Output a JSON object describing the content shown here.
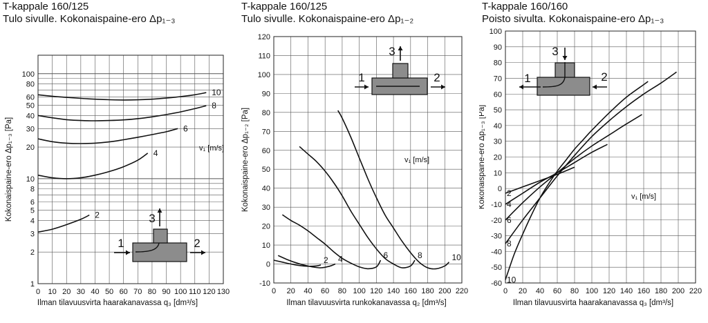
{
  "chart_data": [
    {
      "type": "line",
      "title": "T-kappale 160/125",
      "subtitle": "Tulo sivulle. Kokonaispaine-ero Δp₁₋₃",
      "xlabel": "Ilman tilavuusvirta haarakanavassa q₃ [dm³/s]",
      "ylabel": "Kokonaispaine-ero Δp₁₋₃ [Pa]",
      "yscale": "log",
      "xlim": [
        0,
        130
      ],
      "ylim": [
        1,
        150
      ],
      "xticks": [
        0,
        10,
        20,
        30,
        40,
        50,
        60,
        70,
        80,
        90,
        100,
        110,
        120,
        130
      ],
      "yticks": [
        1,
        2,
        3,
        4,
        5,
        6,
        8,
        10,
        20,
        30,
        40,
        50,
        60,
        80,
        100
      ],
      "grid": true,
      "param_label": "v₁ [m/s]",
      "diagram_labels": [
        "1",
        "2",
        "3"
      ],
      "series": [
        {
          "name": "2",
          "x": [
            0,
            10,
            20,
            30,
            36
          ],
          "y": [
            3.1,
            3.3,
            3.65,
            4.1,
            4.5
          ]
        },
        {
          "name": "4",
          "x": [
            0,
            10,
            20,
            30,
            40,
            50,
            60,
            70,
            77
          ],
          "y": [
            10.8,
            10.2,
            10.0,
            10.2,
            10.8,
            11.7,
            13.0,
            15.0,
            17.5
          ]
        },
        {
          "name": "6",
          "x": [
            0,
            10,
            20,
            30,
            40,
            50,
            60,
            70,
            80,
            90,
            98
          ],
          "y": [
            24,
            22.5,
            21.8,
            21.6,
            21.8,
            22.4,
            23.5,
            24.8,
            26.3,
            28.0,
            30.0
          ]
        },
        {
          "name": "8",
          "x": [
            0,
            10,
            20,
            30,
            40,
            50,
            60,
            70,
            80,
            90,
            100,
            110,
            118
          ],
          "y": [
            40,
            38,
            36.5,
            35.8,
            35.6,
            35.8,
            36.3,
            37.3,
            38.8,
            40.8,
            43.3,
            46.5,
            49.5
          ]
        },
        {
          "name": "10",
          "x": [
            0,
            10,
            20,
            30,
            40,
            50,
            60,
            70,
            80,
            90,
            100,
            110,
            118
          ],
          "y": [
            63,
            61,
            59.5,
            58.2,
            57.2,
            56.5,
            56.2,
            56.4,
            57.2,
            58.6,
            60.5,
            63,
            66
          ]
        }
      ]
    },
    {
      "type": "line",
      "title": "T-kappale 160/125",
      "subtitle": "Tulo sivulle. Kokonaispaine-ero Δp₁₋₂",
      "xlabel": "Ilman tilavuusvirta runkokanavassa q₂ [dm³/s]",
      "ylabel": "Kokonaispaine-ero Δp₁₋₂ [Pa]",
      "yscale": "linear",
      "xlim": [
        0,
        220
      ],
      "ylim": [
        -10,
        120
      ],
      "xticks": [
        0,
        20,
        40,
        60,
        80,
        100,
        120,
        140,
        160,
        180,
        200,
        220
      ],
      "yticks": [
        -10,
        0,
        10,
        20,
        30,
        40,
        50,
        60,
        70,
        80,
        90,
        100,
        110,
        120
      ],
      "grid": true,
      "param_label": "v₁ [m/s]",
      "diagram_labels": [
        "1",
        "2",
        "3"
      ],
      "series": [
        {
          "name": "2",
          "x": [
            0,
            10,
            20,
            30,
            40,
            50,
            55
          ],
          "y": [
            2,
            1,
            0,
            -0.8,
            -1.2,
            -1,
            -0.5
          ]
        },
        {
          "name": "4",
          "x": [
            5,
            15,
            25,
            35,
            45,
            55,
            65,
            72
          ],
          "y": [
            4.5,
            2.5,
            0.8,
            -0.5,
            -1.5,
            -2,
            -1.2,
            0
          ]
        },
        {
          "name": "6",
          "x": [
            10,
            20,
            30,
            40,
            50,
            60,
            70,
            80,
            90,
            100,
            110,
            120,
            125
          ],
          "y": [
            26,
            23,
            20.5,
            17.5,
            14,
            10.5,
            6.5,
            3,
            0.5,
            -1.5,
            -2.5,
            -1.5,
            2
          ]
        },
        {
          "name": "8",
          "x": [
            30,
            40,
            50,
            60,
            70,
            80,
            90,
            100,
            110,
            120,
            130,
            140,
            150,
            160,
            165
          ],
          "y": [
            62,
            58,
            54,
            49,
            43,
            36,
            28,
            21,
            14,
            8,
            3,
            0,
            -2,
            -1,
            2
          ]
        },
        {
          "name": "10",
          "x": [
            75,
            80,
            90,
            100,
            110,
            120,
            130,
            140,
            150,
            160,
            170,
            180,
            190,
            200,
            205
          ],
          "y": [
            81,
            77,
            67,
            56,
            45,
            35,
            26,
            19,
            12,
            6,
            1,
            -2,
            -2.5,
            -1,
            1
          ]
        }
      ]
    },
    {
      "type": "line",
      "title": "T-kappale 160/160",
      "subtitle": "Poisto sivulta. Kokonaispaine-ero Δp₁₋₃",
      "xlabel": "Ilman tilavuusvirta haarakanavassa q₃ [dm³/s]",
      "ylabel": "Kokonaispaine-ero Δp₁₋₃ [Pa]",
      "yscale": "linear",
      "xlim": [
        0,
        220
      ],
      "ylim": [
        -60,
        100
      ],
      "xticks": [
        0,
        20,
        40,
        60,
        80,
        100,
        120,
        140,
        160,
        180,
        200,
        220
      ],
      "yticks": [
        -60,
        -50,
        -40,
        -30,
        -20,
        -10,
        0,
        10,
        20,
        30,
        40,
        50,
        60,
        70,
        80,
        90,
        100
      ],
      "grid": true,
      "param_label": "v₁ [m/s]",
      "diagram_labels": [
        "1",
        "2",
        "3"
      ],
      "series": [
        {
          "name": "2",
          "x": [
            0,
            20,
            40,
            60,
            80
          ],
          "y": [
            -3,
            1,
            5,
            9,
            13.5
          ]
        },
        {
          "name": "4",
          "x": [
            0,
            20,
            40,
            60,
            80,
            100,
            118
          ],
          "y": [
            -10,
            -3,
            4,
            10,
            16.5,
            23,
            28
          ]
        },
        {
          "name": "6",
          "x": [
            0,
            20,
            40,
            60,
            80,
            100,
            120,
            140,
            158
          ],
          "y": [
            -20,
            -9,
            1,
            10,
            19,
            27,
            34,
            41,
            47
          ]
        },
        {
          "name": "8",
          "x": [
            0,
            20,
            40,
            60,
            80,
            100,
            120,
            140,
            160,
            180,
            198
          ],
          "y": [
            -35,
            -20,
            -6,
            8,
            21,
            33,
            43,
            52,
            60,
            67,
            74
          ]
        },
        {
          "name": "10",
          "x": [
            0,
            10,
            20,
            30,
            40,
            50,
            60,
            70,
            80,
            90,
            100,
            120,
            140,
            160,
            165
          ],
          "y": [
            -58,
            -42,
            -29,
            -17,
            -6,
            3,
            11,
            18,
            25,
            31,
            37,
            48,
            58,
            66,
            68
          ]
        }
      ]
    }
  ]
}
